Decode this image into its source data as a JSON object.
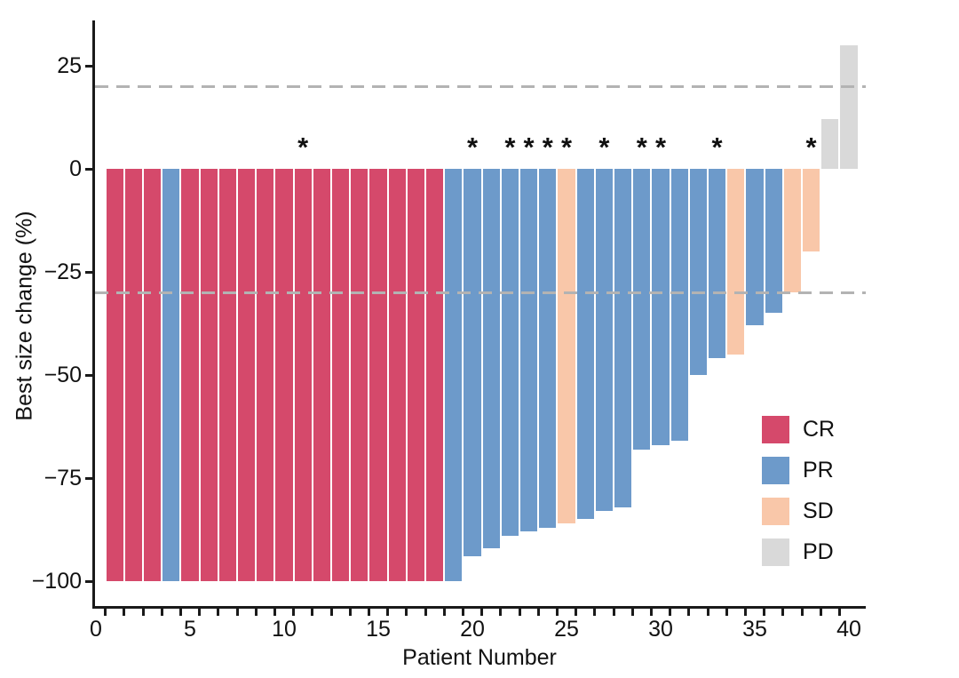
{
  "chart_data": {
    "type": "bar",
    "subtype": "waterfall",
    "title": "",
    "xlabel": "Patient Number",
    "ylabel": "Best size change (%)",
    "xlim": [
      0,
      41
    ],
    "ylim": [
      -106,
      36
    ],
    "grid": false,
    "x_ticks": [
      {
        "value": 0,
        "label": "0"
      },
      {
        "value": 5,
        "label": "5"
      },
      {
        "value": 10,
        "label": "10"
      },
      {
        "value": 15,
        "label": "15"
      },
      {
        "value": 20,
        "label": "20"
      },
      {
        "value": 25,
        "label": "25"
      },
      {
        "value": 30,
        "label": "30"
      },
      {
        "value": 35,
        "label": "35"
      },
      {
        "value": 40,
        "label": "40"
      }
    ],
    "y_ticks": [
      {
        "value": 25,
        "label": "25"
      },
      {
        "value": 0,
        "label": "0"
      },
      {
        "value": -25,
        "label": "−25"
      },
      {
        "value": -50,
        "label": "−50"
      },
      {
        "value": -75,
        "label": "−75"
      },
      {
        "value": -100,
        "label": "−100"
      }
    ],
    "reference_lines": [
      {
        "value": 20,
        "style": "dashed",
        "color": "#b3b3b3"
      },
      {
        "value": -30,
        "style": "dashed",
        "color": "#b3b3b3"
      }
    ],
    "legend_position": "inside-right",
    "legend": [
      {
        "label": "CR",
        "color": "#d5496b"
      },
      {
        "label": "PR",
        "color": "#6d9aca"
      },
      {
        "label": "SD",
        "color": "#f9c7a9"
      },
      {
        "label": "PD",
        "color": "#d9d9d9"
      }
    ],
    "annotation_symbol": "*",
    "patients": [
      {
        "patient": 1,
        "value": -100,
        "response": "CR",
        "star": false
      },
      {
        "patient": 2,
        "value": -100,
        "response": "CR",
        "star": false
      },
      {
        "patient": 3,
        "value": -100,
        "response": "CR",
        "star": false
      },
      {
        "patient": 4,
        "value": -100,
        "response": "PR",
        "star": false
      },
      {
        "patient": 5,
        "value": -100,
        "response": "CR",
        "star": false
      },
      {
        "patient": 6,
        "value": -100,
        "response": "CR",
        "star": false
      },
      {
        "patient": 7,
        "value": -100,
        "response": "CR",
        "star": false
      },
      {
        "patient": 8,
        "value": -100,
        "response": "CR",
        "star": false
      },
      {
        "patient": 9,
        "value": -100,
        "response": "CR",
        "star": false
      },
      {
        "patient": 10,
        "value": -100,
        "response": "CR",
        "star": false
      },
      {
        "patient": 11,
        "value": -100,
        "response": "CR",
        "star": true
      },
      {
        "patient": 12,
        "value": -100,
        "response": "CR",
        "star": false
      },
      {
        "patient": 13,
        "value": -100,
        "response": "CR",
        "star": false
      },
      {
        "patient": 14,
        "value": -100,
        "response": "CR",
        "star": false
      },
      {
        "patient": 15,
        "value": -100,
        "response": "CR",
        "star": false
      },
      {
        "patient": 16,
        "value": -100,
        "response": "CR",
        "star": false
      },
      {
        "patient": 17,
        "value": -100,
        "response": "CR",
        "star": false
      },
      {
        "patient": 18,
        "value": -100,
        "response": "CR",
        "star": false
      },
      {
        "patient": 19,
        "value": -100,
        "response": "PR",
        "star": false
      },
      {
        "patient": 20,
        "value": -94,
        "response": "PR",
        "star": true
      },
      {
        "patient": 21,
        "value": -92,
        "response": "PR",
        "star": false
      },
      {
        "patient": 22,
        "value": -89,
        "response": "PR",
        "star": true
      },
      {
        "patient": 23,
        "value": -88,
        "response": "PR",
        "star": true
      },
      {
        "patient": 24,
        "value": -87,
        "response": "PR",
        "star": true
      },
      {
        "patient": 25,
        "value": -86,
        "response": "SD",
        "star": true
      },
      {
        "patient": 26,
        "value": -85,
        "response": "PR",
        "star": false
      },
      {
        "patient": 27,
        "value": -83,
        "response": "PR",
        "star": true
      },
      {
        "patient": 28,
        "value": -82,
        "response": "PR",
        "star": false
      },
      {
        "patient": 29,
        "value": -68,
        "response": "PR",
        "star": true
      },
      {
        "patient": 30,
        "value": -67,
        "response": "PR",
        "star": true
      },
      {
        "patient": 31,
        "value": -66,
        "response": "PR",
        "star": false
      },
      {
        "patient": 32,
        "value": -50,
        "response": "PR",
        "star": false
      },
      {
        "patient": 33,
        "value": -46,
        "response": "PR",
        "star": true
      },
      {
        "patient": 34,
        "value": -45,
        "response": "SD",
        "star": false
      },
      {
        "patient": 35,
        "value": -38,
        "response": "PR",
        "star": false
      },
      {
        "patient": 36,
        "value": -35,
        "response": "PR",
        "star": false
      },
      {
        "patient": 37,
        "value": -30,
        "response": "SD",
        "star": false
      },
      {
        "patient": 38,
        "value": -20,
        "response": "SD",
        "star": true
      },
      {
        "patient": 39,
        "value": 12,
        "response": "PD",
        "star": false
      },
      {
        "patient": 40,
        "value": 30,
        "response": "PD",
        "star": false
      }
    ]
  }
}
